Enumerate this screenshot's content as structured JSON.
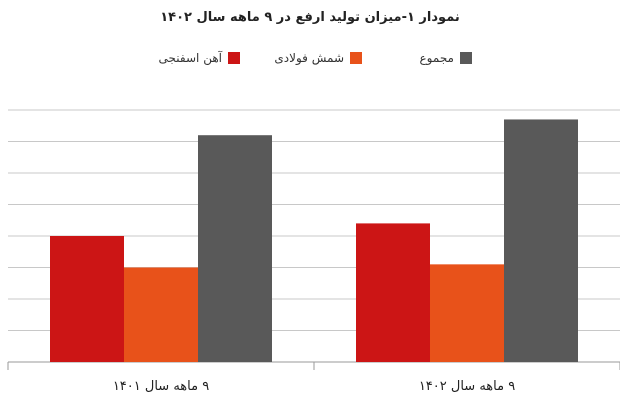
{
  "chart_data": {
    "type": "bar",
    "title": "نمودار ۱-میزان تولید ارفع در ۹ ماهه سال ۱۴۰۲",
    "categories": [
      "۹ ماهه سال ۱۴۰۱",
      "۹ ماهه سال ۱۴۰۲"
    ],
    "series": [
      {
        "name": "آهن اسفنجی",
        "values": [
          4.0,
          4.4
        ],
        "color": "#cc1515"
      },
      {
        "name": "شمش فولادی",
        "values": [
          3.0,
          3.1
        ],
        "color": "#e8521a"
      },
      {
        "name": "مجموع",
        "values": [
          7.2,
          7.7
        ],
        "color": "#595959"
      }
    ],
    "ylim": [
      0,
      8
    ],
    "grid": true,
    "legend_position": "top-center"
  }
}
